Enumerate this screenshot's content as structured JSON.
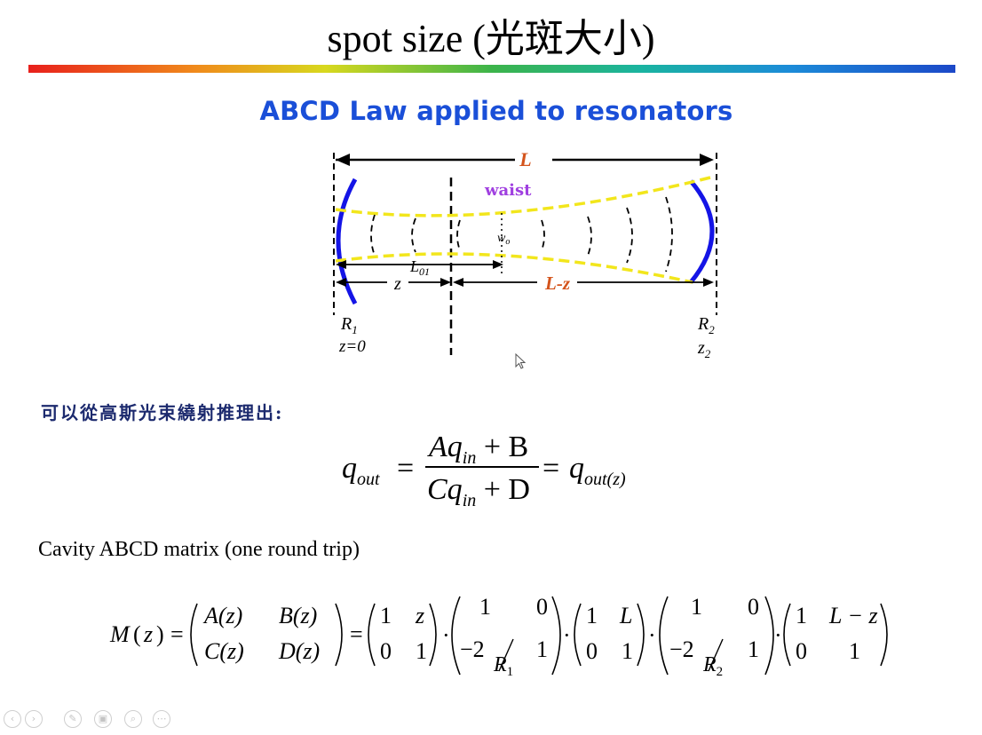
{
  "slide": {
    "title": "spot size (光斑大小)",
    "accent_bar_colors": [
      "#e8201c",
      "#f08a1c",
      "#d8d81e",
      "#3cb44a",
      "#1ab4a0",
      "#1c8cd8",
      "#1c48c8"
    ]
  },
  "diagram": {
    "heading": "ABCD Law applied to resonators",
    "label_L": "L",
    "label_waist": "waist",
    "label_w0": "w",
    "label_w0_sub": "o",
    "label_L01": "L",
    "label_L01_sub": "01",
    "label_z": "z",
    "label_Lz": "L-z",
    "label_R1": "R",
    "label_R1_sub": "1",
    "label_z0": "z=0",
    "label_R2": "R",
    "label_R2_sub": "2",
    "label_z2": "z",
    "label_z2_sub": "2",
    "colors": {
      "mirror": "#1414e6",
      "beam": "#f2e61c",
      "label_orange": "#d4541c",
      "label_purple": "#a040e0"
    }
  },
  "text": {
    "derive": "可以從高斯光束繞射推理出:",
    "cavity_label": "Cavity ABCD matrix (one round trip)"
  },
  "equation1": {
    "lhs": "q",
    "lhs_sub": "out",
    "num_A": "Aq",
    "num_sub": "in",
    "num_rest": " + B",
    "den_C": "Cq",
    "den_sub": "in",
    "den_rest": " + D",
    "rhs": "q",
    "rhs_sub": "out(z)"
  },
  "matrix_equation": {
    "lhs": "M",
    "z": "z",
    "M": [
      [
        "A(z)",
        "B(z)"
      ],
      [
        "C(z)",
        "D(z)"
      ]
    ],
    "m1": [
      [
        "1",
        "z"
      ],
      [
        "0",
        "1"
      ]
    ],
    "m2": [
      [
        "1",
        "0"
      ],
      [
        "−2",
        "1"
      ]
    ],
    "m2_den": "R",
    "m2_den_sub": "1",
    "m3": [
      [
        "1",
        "L"
      ],
      [
        "0",
        "1"
      ]
    ],
    "m4": [
      [
        "1",
        "0"
      ],
      [
        "−2",
        "1"
      ]
    ],
    "m4_den": "R",
    "m4_den_sub": "2",
    "m5": [
      [
        "1",
        "L − z"
      ],
      [
        "0",
        "1"
      ]
    ]
  },
  "toolbar": {
    "icons": [
      "back-icon",
      "forward-icon",
      "pen-icon",
      "slides-icon",
      "zoom-icon",
      "more-icon"
    ],
    "glyphs": [
      "‹",
      "›",
      "✎",
      "▣",
      "⌕",
      "⋯"
    ]
  }
}
